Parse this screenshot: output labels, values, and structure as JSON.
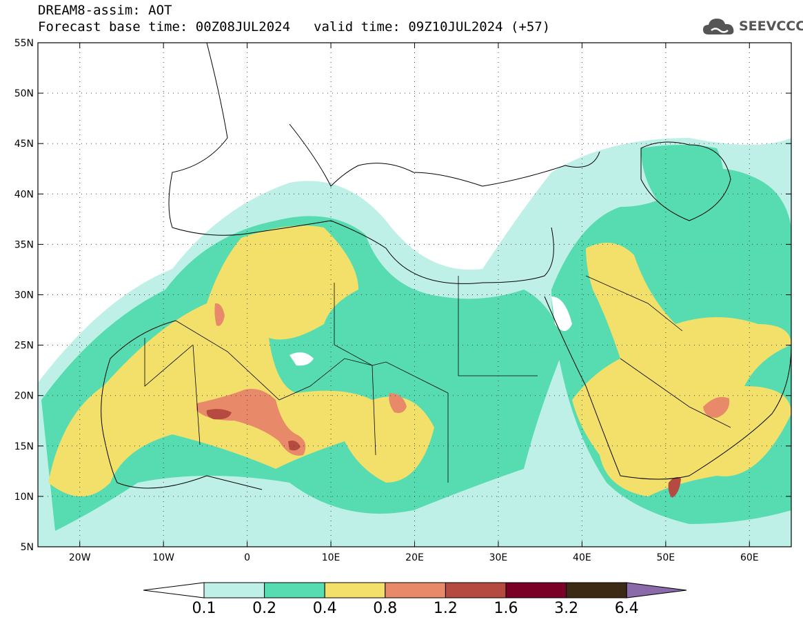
{
  "title": {
    "line1": "DREAM8-assim: AOT",
    "base_time": "Forecast base time: 00Z08JUL2024",
    "valid_time": "valid time: 09Z10JUL2024 (+57)"
  },
  "logo": {
    "icon": "cloud-icon",
    "text": "SEEVCCC"
  },
  "map": {
    "lon_range": [
      -25,
      65
    ],
    "lat_range": [
      5,
      55
    ],
    "lat_labels": [
      "55N",
      "50N",
      "45N",
      "40N",
      "35N",
      "30N",
      "25N",
      "20N",
      "15N",
      "10N",
      "5N"
    ],
    "lon_labels": [
      "20W",
      "10W",
      "0",
      "10E",
      "20E",
      "30E",
      "40E",
      "50E",
      "60E"
    ],
    "grid": "dotted"
  },
  "colorbar": {
    "labels": [
      "0.1",
      "0.2",
      "0.4",
      "0.8",
      "1.2",
      "1.6",
      "3.2",
      "6.4"
    ],
    "colors": [
      "#bff0e8",
      "#56dcb0",
      "#f2e06a",
      "#e8896a",
      "#b44a40",
      "#7a0025",
      "#3d2a14",
      "#8a6aa8"
    ]
  }
}
